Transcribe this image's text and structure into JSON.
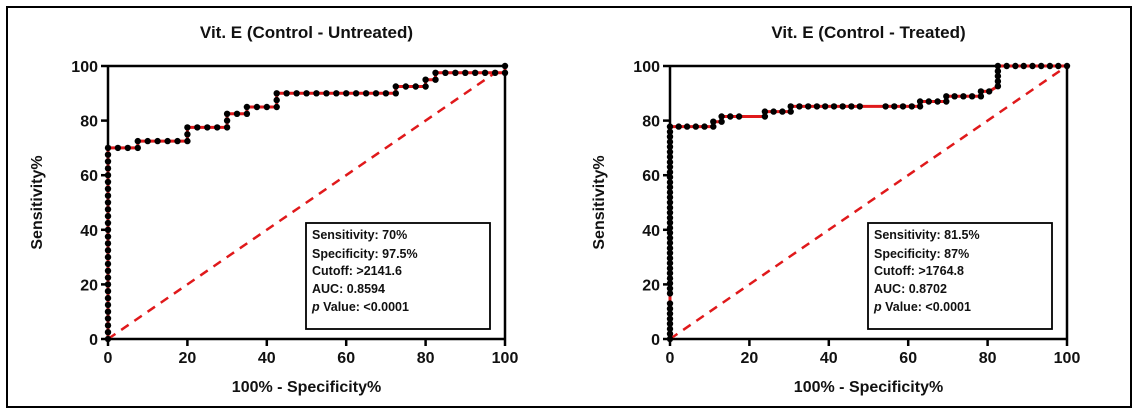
{
  "chart_data": [
    {
      "type": "line",
      "title": "Vit. E (Control - Untreated)",
      "xlabel": "100% - Specificity%",
      "ylabel": "Sensitivity%",
      "xlim": [
        0,
        100
      ],
      "ylim": [
        0,
        100
      ],
      "xticks": [
        "0",
        "20",
        "40",
        "60",
        "80",
        "100"
      ],
      "yticks": [
        "0",
        "20",
        "40",
        "60",
        "80",
        "100"
      ],
      "grid": false,
      "series": [
        {
          "name": "ROC curve",
          "color": "#e0191b",
          "marker_color": "#000000",
          "points": [
            [
              0,
              0
            ],
            [
              0,
              2.5
            ],
            [
              0,
              5
            ],
            [
              0,
              7.5
            ],
            [
              0,
              10
            ],
            [
              0,
              12.5
            ],
            [
              0,
              15
            ],
            [
              0,
              17.5
            ],
            [
              0,
              20
            ],
            [
              0,
              22.5
            ],
            [
              0,
              25
            ],
            [
              0,
              27.5
            ],
            [
              0,
              30
            ],
            [
              0,
              32.5
            ],
            [
              0,
              35
            ],
            [
              0,
              37.5
            ],
            [
              0,
              40
            ],
            [
              0,
              42.5
            ],
            [
              0,
              45
            ],
            [
              0,
              47.5
            ],
            [
              0,
              50
            ],
            [
              0,
              52.5
            ],
            [
              0,
              55
            ],
            [
              0,
              57.5
            ],
            [
              0,
              60
            ],
            [
              0,
              62.5
            ],
            [
              0,
              65
            ],
            [
              0,
              67.5
            ],
            [
              0,
              70
            ],
            [
              2.5,
              70
            ],
            [
              5,
              70
            ],
            [
              7.5,
              70
            ],
            [
              7.5,
              72.5
            ],
            [
              10,
              72.5
            ],
            [
              12.5,
              72.5
            ],
            [
              15,
              72.5
            ],
            [
              17.5,
              72.5
            ],
            [
              20,
              72.5
            ],
            [
              20,
              75
            ],
            [
              20,
              77.5
            ],
            [
              22.5,
              77.5
            ],
            [
              25,
              77.5
            ],
            [
              27.5,
              77.5
            ],
            [
              30,
              77.5
            ],
            [
              30,
              80
            ],
            [
              30,
              82.5
            ],
            [
              32.5,
              82.5
            ],
            [
              35,
              82.5
            ],
            [
              35,
              85
            ],
            [
              37.5,
              85
            ],
            [
              40,
              85
            ],
            [
              42.5,
              85
            ],
            [
              42.5,
              87.5
            ],
            [
              42.5,
              90
            ],
            [
              45,
              90
            ],
            [
              47.5,
              90
            ],
            [
              50,
              90
            ],
            [
              52.5,
              90
            ],
            [
              55,
              90
            ],
            [
              57.5,
              90
            ],
            [
              60,
              90
            ],
            [
              62.5,
              90
            ],
            [
              65,
              90
            ],
            [
              67.5,
              90
            ],
            [
              70,
              90
            ],
            [
              72.5,
              90
            ],
            [
              72.5,
              92.5
            ],
            [
              75,
              92.5
            ],
            [
              77.5,
              92.5
            ],
            [
              80,
              92.5
            ],
            [
              80,
              95
            ],
            [
              82.5,
              95
            ],
            [
              82.5,
              97.5
            ],
            [
              85,
              97.5
            ],
            [
              87.5,
              97.5
            ],
            [
              90,
              97.5
            ],
            [
              92.5,
              97.5
            ],
            [
              95,
              97.5
            ],
            [
              97.5,
              97.5
            ],
            [
              100,
              97.5
            ],
            [
              100,
              100
            ]
          ]
        },
        {
          "name": "Reference line",
          "color": "#e0191b",
          "style": "dashed",
          "points": [
            [
              0,
              0
            ],
            [
              100,
              100
            ]
          ]
        }
      ],
      "annotation": {
        "lines": [
          {
            "label": "Sensitivity: 70%"
          },
          {
            "label": "Specificity: 97.5%"
          },
          {
            "label": "Cutoff: >2141.6"
          },
          {
            "label": "AUC: 0.8594"
          },
          {
            "italic_prefix": "p",
            "label": " Value: <0.0001"
          }
        ],
        "placement": "bottom-right"
      }
    },
    {
      "type": "line",
      "title": "Vit. E (Control - Treated)",
      "xlabel": "100% - Specificity%",
      "ylabel": "Sensitivity%",
      "xlim": [
        0,
        100
      ],
      "ylim": [
        0,
        100
      ],
      "xticks": [
        "0",
        "20",
        "40",
        "60",
        "80",
        "100"
      ],
      "yticks": [
        "0",
        "20",
        "40",
        "60",
        "80",
        "100"
      ],
      "grid": false,
      "series": [
        {
          "name": "ROC curve",
          "color": "#e0191b",
          "marker_color": "#000000",
          "points": [
            [
              0,
              0
            ],
            [
              0,
              1.9
            ],
            [
              0,
              3.7
            ],
            [
              0,
              5.6
            ],
            [
              0,
              7.4
            ],
            [
              0,
              9.3
            ],
            [
              0,
              11.1
            ],
            [
              0,
              13
            ],
            [
              0,
              16.7
            ],
            [
              0,
              18.5
            ],
            [
              0,
              20.4
            ],
            [
              0,
              22.2
            ],
            [
              0,
              24.1
            ],
            [
              0,
              25.9
            ],
            [
              0,
              27.8
            ],
            [
              0,
              29.6
            ],
            [
              0,
              31.5
            ],
            [
              0,
              33.3
            ],
            [
              0,
              35.2
            ],
            [
              0,
              37
            ],
            [
              0,
              38.9
            ],
            [
              0,
              40.7
            ],
            [
              0,
              42.6
            ],
            [
              0,
              44.4
            ],
            [
              0,
              46.3
            ],
            [
              0,
              48.1
            ],
            [
              0,
              50
            ],
            [
              0,
              51.9
            ],
            [
              0,
              53.7
            ],
            [
              0,
              55.6
            ],
            [
              0,
              57.4
            ],
            [
              0,
              59.3
            ],
            [
              0,
              61.1
            ],
            [
              0,
              63
            ],
            [
              0,
              64.8
            ],
            [
              0,
              66.7
            ],
            [
              0,
              68.5
            ],
            [
              0,
              70.4
            ],
            [
              0,
              72.2
            ],
            [
              0,
              74.1
            ],
            [
              0,
              75.9
            ],
            [
              0,
              77.8
            ],
            [
              2.2,
              77.8
            ],
            [
              4.3,
              77.8
            ],
            [
              6.5,
              77.8
            ],
            [
              8.7,
              77.8
            ],
            [
              10.9,
              77.8
            ],
            [
              10.9,
              79.6
            ],
            [
              13,
              79.6
            ],
            [
              13,
              81.5
            ],
            [
              15.2,
              81.5
            ],
            [
              17.4,
              81.5
            ],
            [
              23.9,
              81.5
            ],
            [
              23.9,
              83.3
            ],
            [
              26.1,
              83.3
            ],
            [
              28.3,
              83.3
            ],
            [
              30.4,
              83.3
            ],
            [
              30.4,
              85.2
            ],
            [
              32.6,
              85.2
            ],
            [
              34.8,
              85.2
            ],
            [
              37,
              85.2
            ],
            [
              39.1,
              85.2
            ],
            [
              41.3,
              85.2
            ],
            [
              43.5,
              85.2
            ],
            [
              45.7,
              85.2
            ],
            [
              47.8,
              85.2
            ],
            [
              54.3,
              85.2
            ],
            [
              56.5,
              85.2
            ],
            [
              58.7,
              85.2
            ],
            [
              60.9,
              85.2
            ],
            [
              63,
              85.2
            ],
            [
              63,
              87
            ],
            [
              65.2,
              87
            ],
            [
              67.4,
              87
            ],
            [
              69.6,
              87
            ],
            [
              69.6,
              88.9
            ],
            [
              71.7,
              88.9
            ],
            [
              73.9,
              88.9
            ],
            [
              76.1,
              88.9
            ],
            [
              78.3,
              88.9
            ],
            [
              78.3,
              90.7
            ],
            [
              80.4,
              90.7
            ],
            [
              82.6,
              92.6
            ],
            [
              82.6,
              94.4
            ],
            [
              82.6,
              96.3
            ],
            [
              82.6,
              98.1
            ],
            [
              82.6,
              100
            ],
            [
              84.8,
              100
            ],
            [
              87,
              100
            ],
            [
              89.1,
              100
            ],
            [
              91.3,
              100
            ],
            [
              93.5,
              100
            ],
            [
              95.7,
              100
            ],
            [
              97.8,
              100
            ],
            [
              100,
              100
            ]
          ]
        },
        {
          "name": "Reference line",
          "color": "#e0191b",
          "style": "dashed",
          "points": [
            [
              0,
              0
            ],
            [
              100,
              100
            ]
          ]
        }
      ],
      "annotation": {
        "lines": [
          {
            "label": "Sensitivity: 81.5%"
          },
          {
            "label": "Specificity: 87%"
          },
          {
            "label": "Cutoff: >1764.8"
          },
          {
            "label": "AUC: 0.8702"
          },
          {
            "italic_prefix": "p",
            "label": " Value: <0.0001"
          }
        ],
        "placement": "bottom-right"
      }
    }
  ]
}
